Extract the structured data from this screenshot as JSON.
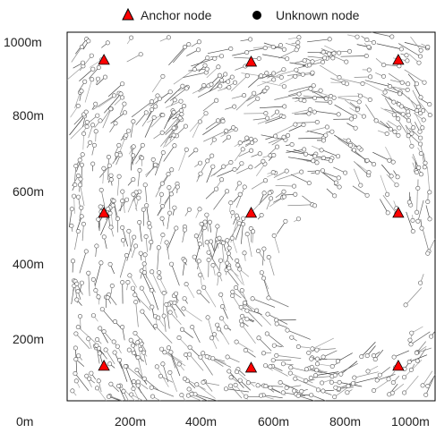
{
  "chart_data": {
    "type": "scatter",
    "title": "",
    "xlabel": "",
    "ylabel": "",
    "xlim": [
      0,
      1000
    ],
    "ylim": [
      0,
      1000
    ],
    "x_ticks": [
      0,
      200,
      400,
      600,
      800,
      1000
    ],
    "y_ticks": [
      200,
      400,
      600,
      800,
      1000
    ],
    "x_tick_labels": [
      "0m",
      "200m",
      "400m",
      "600m",
      "800m",
      "1000m"
    ],
    "y_tick_labels": [
      "200m",
      "400m",
      "600m",
      "800m",
      "1000m"
    ],
    "grid": false,
    "legend_position": "top-center",
    "legend": [
      {
        "label": "Anchor node",
        "marker": "triangle",
        "color": "#ff0000"
      },
      {
        "label": "Unknown node",
        "marker": "circle",
        "color": "#000000"
      }
    ],
    "series": [
      {
        "name": "Anchor node",
        "marker": "triangle",
        "color": "#ff0000",
        "points": [
          {
            "x": 100,
            "y": 925
          },
          {
            "x": 500,
            "y": 920
          },
          {
            "x": 900,
            "y": 925
          },
          {
            "x": 100,
            "y": 510
          },
          {
            "x": 500,
            "y": 510
          },
          {
            "x": 900,
            "y": 510
          },
          {
            "x": 100,
            "y": 95
          },
          {
            "x": 500,
            "y": 90
          },
          {
            "x": 900,
            "y": 95
          }
        ]
      },
      {
        "name": "Unknown node",
        "marker": "circle",
        "color": "#000000",
        "note_on_rendering": "",
        "points": [
          {
            "x": 40,
            "y": 960
          },
          {
            "x": 70,
            "y": 900
          },
          {
            "x": 150,
            "y": 860
          },
          {
            "x": 200,
            "y": 940
          },
          {
            "x": 260,
            "y": 880
          },
          {
            "x": 320,
            "y": 960
          },
          {
            "x": 380,
            "y": 900
          },
          {
            "x": 440,
            "y": 850
          },
          {
            "x": 560,
            "y": 960
          },
          {
            "x": 620,
            "y": 880
          },
          {
            "x": 700,
            "y": 930
          },
          {
            "x": 760,
            "y": 860
          },
          {
            "x": 820,
            "y": 960
          },
          {
            "x": 860,
            "y": 880
          },
          {
            "x": 950,
            "y": 860
          },
          {
            "x": 980,
            "y": 960
          },
          {
            "x": 30,
            "y": 800
          },
          {
            "x": 90,
            "y": 760
          },
          {
            "x": 160,
            "y": 720
          },
          {
            "x": 230,
            "y": 790
          },
          {
            "x": 290,
            "y": 740
          },
          {
            "x": 350,
            "y": 680
          },
          {
            "x": 410,
            "y": 760
          },
          {
            "x": 470,
            "y": 700
          },
          {
            "x": 540,
            "y": 780
          },
          {
            "x": 600,
            "y": 720
          },
          {
            "x": 660,
            "y": 790
          },
          {
            "x": 720,
            "y": 730
          },
          {
            "x": 780,
            "y": 680
          },
          {
            "x": 840,
            "y": 760
          },
          {
            "x": 900,
            "y": 720
          },
          {
            "x": 960,
            "y": 780
          },
          {
            "x": 40,
            "y": 640
          },
          {
            "x": 120,
            "y": 600
          },
          {
            "x": 180,
            "y": 560
          },
          {
            "x": 240,
            "y": 640
          },
          {
            "x": 300,
            "y": 580
          },
          {
            "x": 360,
            "y": 520
          },
          {
            "x": 420,
            "y": 600
          },
          {
            "x": 470,
            "y": 560
          },
          {
            "x": 560,
            "y": 620
          },
          {
            "x": 620,
            "y": 560
          },
          {
            "x": 680,
            "y": 620
          },
          {
            "x": 740,
            "y": 580
          },
          {
            "x": 820,
            "y": 620
          },
          {
            "x": 870,
            "y": 560
          },
          {
            "x": 950,
            "y": 620
          },
          {
            "x": 980,
            "y": 540
          },
          {
            "x": 30,
            "y": 460
          },
          {
            "x": 80,
            "y": 420
          },
          {
            "x": 150,
            "y": 470
          },
          {
            "x": 200,
            "y": 400
          },
          {
            "x": 260,
            "y": 450
          },
          {
            "x": 320,
            "y": 380
          },
          {
            "x": 380,
            "y": 430
          },
          {
            "x": 440,
            "y": 360
          },
          {
            "x": 940,
            "y": 460
          },
          {
            "x": 980,
            "y": 400
          },
          {
            "x": 960,
            "y": 320
          },
          {
            "x": 920,
            "y": 260
          },
          {
            "x": 40,
            "y": 320
          },
          {
            "x": 110,
            "y": 280
          },
          {
            "x": 170,
            "y": 340
          },
          {
            "x": 230,
            "y": 300
          },
          {
            "x": 280,
            "y": 240
          },
          {
            "x": 340,
            "y": 200
          },
          {
            "x": 400,
            "y": 180
          },
          {
            "x": 460,
            "y": 160
          },
          {
            "x": 30,
            "y": 200
          },
          {
            "x": 80,
            "y": 150
          },
          {
            "x": 150,
            "y": 200
          },
          {
            "x": 200,
            "y": 140
          },
          {
            "x": 260,
            "y": 100
          },
          {
            "x": 320,
            "y": 60
          },
          {
            "x": 380,
            "y": 120
          },
          {
            "x": 440,
            "y": 80
          },
          {
            "x": 560,
            "y": 110
          },
          {
            "x": 620,
            "y": 60
          },
          {
            "x": 680,
            "y": 100
          },
          {
            "x": 740,
            "y": 50
          },
          {
            "x": 800,
            "y": 120
          },
          {
            "x": 850,
            "y": 70
          },
          {
            "x": 950,
            "y": 130
          },
          {
            "x": 980,
            "y": 40
          },
          {
            "x": 60,
            "y": 60
          },
          {
            "x": 140,
            "y": 40
          },
          {
            "x": 210,
            "y": 60
          },
          {
            "x": 540,
            "y": 40
          }
        ]
      }
    ]
  }
}
